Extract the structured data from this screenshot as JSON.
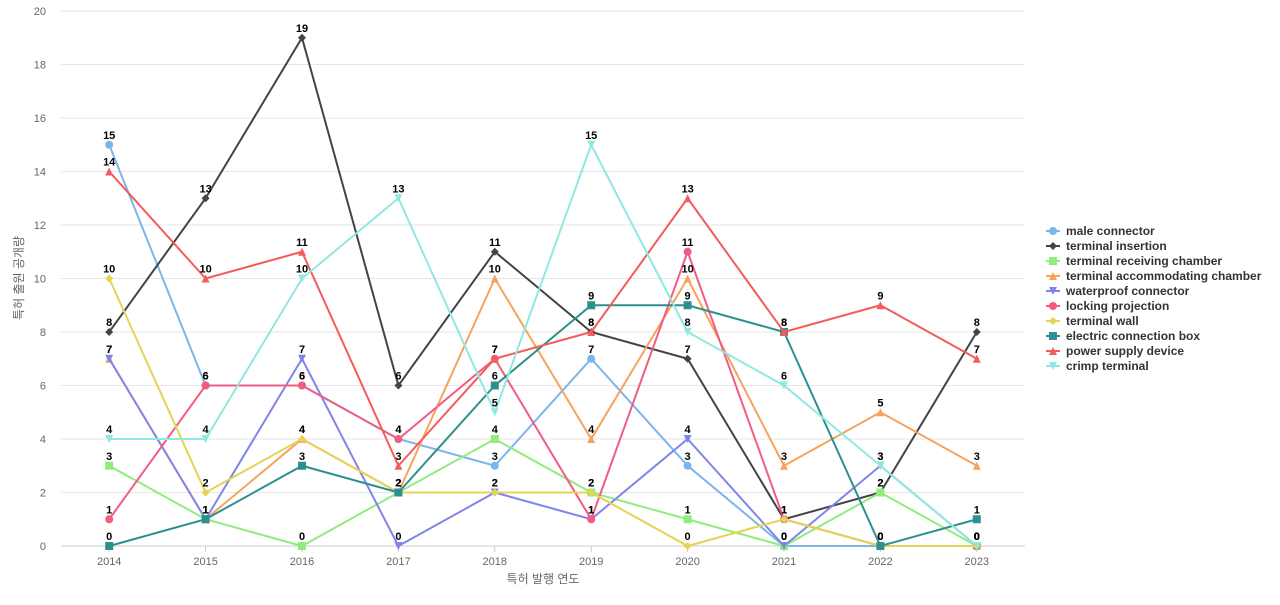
{
  "chart_data": {
    "type": "line",
    "xlabel": "특허 발행 연도",
    "ylabel": "특허 출원 공개량",
    "ylim": [
      0,
      20
    ],
    "yticks": [
      0,
      2,
      4,
      6,
      8,
      10,
      12,
      14,
      16,
      18,
      20
    ],
    "categories": [
      "2014",
      "2015",
      "2016",
      "2017",
      "2018",
      "2019",
      "2020",
      "2021",
      "2022",
      "2023"
    ],
    "grid": true,
    "legend_position": "right",
    "series": [
      {
        "name": "male connector",
        "color": "#7cb5ec",
        "marker": "circle",
        "values": [
          15,
          6,
          6,
          4,
          3,
          7,
          3,
          0,
          0,
          0
        ]
      },
      {
        "name": "terminal insertion",
        "color": "#434348",
        "marker": "diamond",
        "values": [
          8,
          13,
          19,
          6,
          11,
          8,
          7,
          1,
          2,
          8
        ]
      },
      {
        "name": "terminal receiving chamber",
        "color": "#90ed7d",
        "marker": "square",
        "values": [
          3,
          1,
          0,
          2,
          4,
          2,
          1,
          0,
          2,
          0
        ]
      },
      {
        "name": "terminal accommodating chamber",
        "color": "#f7a35c",
        "marker": "triangle",
        "values": [
          7,
          1,
          4,
          2,
          10,
          4,
          10,
          3,
          5,
          3
        ]
      },
      {
        "name": "waterproof connector",
        "color": "#8085e9",
        "marker": "triangle-down",
        "values": [
          7,
          1,
          7,
          0,
          2,
          1,
          4,
          0,
          3,
          0
        ]
      },
      {
        "name": "locking projection",
        "color": "#f15c80",
        "marker": "circle",
        "values": [
          1,
          6,
          6,
          4,
          7,
          1,
          11,
          1,
          0,
          0
        ]
      },
      {
        "name": "terminal wall",
        "color": "#e4d354",
        "marker": "diamond",
        "values": [
          10,
          2,
          4,
          2,
          2,
          2,
          0,
          1,
          0,
          0
        ]
      },
      {
        "name": "electric connection box",
        "color": "#2b908f",
        "marker": "square",
        "values": [
          0,
          1,
          3,
          2,
          6,
          9,
          9,
          8,
          0,
          1
        ]
      },
      {
        "name": "power supply device",
        "color": "#f45b5b",
        "marker": "triangle",
        "values": [
          14,
          10,
          11,
          3,
          7,
          8,
          13,
          8,
          9,
          7
        ]
      },
      {
        "name": "crimp terminal",
        "color": "#91e8e1",
        "marker": "triangle-down",
        "values": [
          4,
          4,
          10,
          13,
          5,
          15,
          8,
          6,
          3,
          0
        ]
      }
    ]
  }
}
